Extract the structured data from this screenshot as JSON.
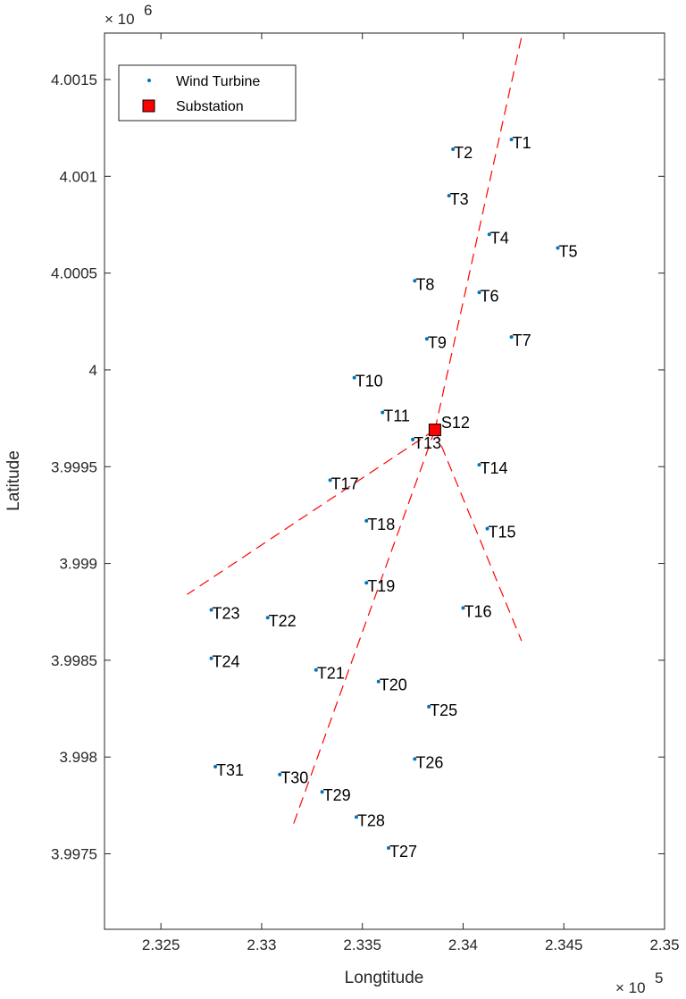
{
  "chart_data": {
    "type": "scatter",
    "xlabel": "Longtitude",
    "ylabel": "Latitude",
    "x_multiplier": "× 10",
    "x_exponent": "5",
    "y_multiplier": "× 10",
    "y_exponent": "6",
    "xlim": [
      2.3222,
      2.35
    ],
    "ylim": [
      3.99711,
      4.00174
    ],
    "xticks": [
      {
        "value": 2.325,
        "label": "2.325"
      },
      {
        "value": 2.33,
        "label": "2.33"
      },
      {
        "value": 2.335,
        "label": "2.335"
      },
      {
        "value": 2.34,
        "label": "2.34"
      },
      {
        "value": 2.345,
        "label": "2.345"
      },
      {
        "value": 2.35,
        "label": "2.35"
      }
    ],
    "yticks": [
      {
        "value": 3.9975,
        "label": "3.9975"
      },
      {
        "value": 3.998,
        "label": "3.998"
      },
      {
        "value": 3.9985,
        "label": "3.9985"
      },
      {
        "value": 3.999,
        "label": "3.999"
      },
      {
        "value": 3.9995,
        "label": "3.9995"
      },
      {
        "value": 4.0,
        "label": "4"
      },
      {
        "value": 4.0005,
        "label": "4.0005"
      },
      {
        "value": 4.001,
        "label": "4.001"
      },
      {
        "value": 4.0015,
        "label": "4.0015"
      }
    ],
    "grid": false,
    "legend_position": "top-left",
    "legend": [
      {
        "name": "Wind Turbine",
        "marker": "dot"
      },
      {
        "name": "Substation",
        "marker": "square"
      }
    ],
    "colors": {
      "turbine": "#0072BD",
      "substation_fill": "#FF0000",
      "substation_edge": "#000000",
      "cable": "#FF0000"
    },
    "turbines": [
      {
        "label": "T1",
        "x": 2.3424,
        "y": 4.00119
      },
      {
        "label": "T2",
        "x": 2.3395,
        "y": 4.00114
      },
      {
        "label": "T3",
        "x": 2.3393,
        "y": 4.0009
      },
      {
        "label": "T4",
        "x": 2.3413,
        "y": 4.0007
      },
      {
        "label": "T5",
        "x": 2.3447,
        "y": 4.00063
      },
      {
        "label": "T6",
        "x": 2.3408,
        "y": 4.0004
      },
      {
        "label": "T7",
        "x": 2.3424,
        "y": 4.00017
      },
      {
        "label": "T8",
        "x": 2.3376,
        "y": 4.00046
      },
      {
        "label": "T9",
        "x": 2.3382,
        "y": 4.00016
      },
      {
        "label": "T10",
        "x": 2.3346,
        "y": 3.99996
      },
      {
        "label": "T11",
        "x": 2.336,
        "y": 3.99978
      },
      {
        "label": "T13",
        "x": 2.3375,
        "y": 3.99964
      },
      {
        "label": "T14",
        "x": 2.3408,
        "y": 3.99951
      },
      {
        "label": "T15",
        "x": 2.3412,
        "y": 3.99918
      },
      {
        "label": "T16",
        "x": 2.34,
        "y": 3.99877
      },
      {
        "label": "T17",
        "x": 2.3334,
        "y": 3.99943
      },
      {
        "label": "T18",
        "x": 2.3352,
        "y": 3.99922
      },
      {
        "label": "T19",
        "x": 2.3352,
        "y": 3.9989
      },
      {
        "label": "T20",
        "x": 2.3358,
        "y": 3.99839
      },
      {
        "label": "T21",
        "x": 2.3327,
        "y": 3.99845
      },
      {
        "label": "T22",
        "x": 2.3303,
        "y": 3.99872
      },
      {
        "label": "T23",
        "x": 2.3275,
        "y": 3.99876
      },
      {
        "label": "T24",
        "x": 2.3275,
        "y": 3.99851
      },
      {
        "label": "T25",
        "x": 2.3383,
        "y": 3.99826
      },
      {
        "label": "T26",
        "x": 2.3376,
        "y": 3.99799
      },
      {
        "label": "T27",
        "x": 2.3363,
        "y": 3.99753
      },
      {
        "label": "T28",
        "x": 2.3347,
        "y": 3.99769
      },
      {
        "label": "T29",
        "x": 2.333,
        "y": 3.99782
      },
      {
        "label": "T30",
        "x": 2.3309,
        "y": 3.99791
      },
      {
        "label": "T31",
        "x": 2.3277,
        "y": 3.99795
      }
    ],
    "substation": {
      "label": "S12",
      "x": 2.3386,
      "y": 3.99969
    },
    "cables": [
      {
        "from": [
          2.3386,
          3.99969
        ],
        "to": [
          2.3429,
          4.00172
        ]
      },
      {
        "from": [
          2.3386,
          3.99969
        ],
        "to": [
          2.3263,
          3.99884
        ]
      },
      {
        "from": [
          2.3386,
          3.99969
        ],
        "to": [
          2.3315,
          3.99763
        ]
      },
      {
        "from": [
          2.3386,
          3.99969
        ],
        "to": [
          2.3429,
          3.9986
        ]
      }
    ]
  }
}
